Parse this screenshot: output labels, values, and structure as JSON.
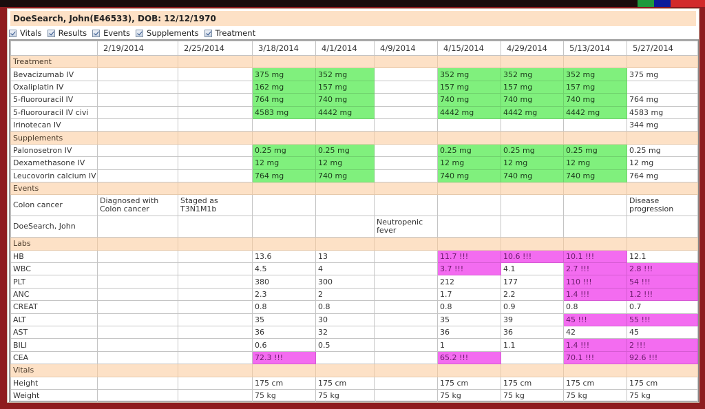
{
  "window": {
    "accent_colors": [
      "#1e9a3c",
      "#0b1c9a",
      "#d22a2a"
    ],
    "frame_color": "#8e1c1f"
  },
  "patient": {
    "header": "DoeSearch, John(E46533), DOB: 12/12/1970"
  },
  "filters": [
    {
      "label": "Vitals",
      "checked": true
    },
    {
      "label": "Results",
      "checked": true
    },
    {
      "label": "Events",
      "checked": true
    },
    {
      "label": "Supplements",
      "checked": true
    },
    {
      "label": "Treatment",
      "checked": true
    }
  ],
  "colors": {
    "section_bg": "#fde1c6",
    "administered_green": "#80f07d",
    "abnormal_magenta": "#f36cf0"
  },
  "grid": {
    "dates": [
      "2/19/2014",
      "2/25/2014",
      "3/18/2014",
      "4/1/2014",
      "4/9/2014",
      "4/15/2014",
      "4/29/2014",
      "5/13/2014",
      "5/27/2014"
    ],
    "sections": {
      "treatment": {
        "label": "Treatment",
        "rows": [
          {
            "name": "Bevacizumab IV",
            "values": [
              "",
              "",
              "375 mg",
              "352 mg",
              "",
              "352 mg",
              "352 mg",
              "352 mg",
              "375 mg"
            ]
          },
          {
            "name": "Oxaliplatin IV",
            "values": [
              "",
              "",
              "162 mg",
              "157 mg",
              "",
              "157 mg",
              "157 mg",
              "157 mg",
              ""
            ]
          },
          {
            "name": "5-fluorouracil IV",
            "values": [
              "",
              "",
              "764 mg",
              "740 mg",
              "",
              "740 mg",
              "740 mg",
              "740 mg",
              "764 mg"
            ]
          },
          {
            "name": "5-fluorouracil IV civi",
            "values": [
              "",
              "",
              "4583 mg",
              "4442 mg",
              "",
              "4442 mg",
              "4442 mg",
              "4442 mg",
              "4583 mg"
            ]
          },
          {
            "name": "Irinotecan IV",
            "values": [
              "",
              "",
              "",
              "",
              "",
              "",
              "",
              "",
              "344 mg"
            ]
          }
        ]
      },
      "supplements": {
        "label": "Supplements",
        "rows": [
          {
            "name": "Palonosetron IV",
            "values": [
              "",
              "",
              "0.25 mg",
              "0.25 mg",
              "",
              "0.25 mg",
              "0.25 mg",
              "0.25 mg",
              "0.25 mg"
            ]
          },
          {
            "name": "Dexamethasone IV",
            "values": [
              "",
              "",
              "12 mg",
              "12 mg",
              "",
              "12 mg",
              "12 mg",
              "12 mg",
              "12 mg"
            ]
          },
          {
            "name": "Leucovorin calcium IV",
            "values": [
              "",
              "",
              "764 mg",
              "740 mg",
              "",
              "740 mg",
              "740 mg",
              "740 mg",
              "764 mg"
            ]
          }
        ]
      },
      "events": {
        "label": "Events",
        "rows": [
          {
            "name": "Colon cancer",
            "values": [
              "Diagnosed with Colon cancer",
              "Staged as T3N1M1b",
              "",
              "",
              "",
              "",
              "",
              "",
              "Disease progression"
            ]
          },
          {
            "name": "DoeSearch, John",
            "values": [
              "",
              "",
              "",
              "",
              "Neutropenic fever",
              "",
              "",
              "",
              ""
            ]
          }
        ]
      },
      "labs": {
        "label": "Labs",
        "rows": [
          {
            "name": "HB",
            "values": [
              "",
              "",
              "13.6",
              "13",
              "",
              "11.7 !!!",
              "10.6 !!!",
              "10.1 !!!",
              "12.1"
            ]
          },
          {
            "name": "WBC",
            "values": [
              "",
              "",
              "4.5",
              "4",
              "",
              "3.7 !!!",
              "4.1",
              "2.7 !!!",
              "2.8 !!!"
            ]
          },
          {
            "name": "PLT",
            "values": [
              "",
              "",
              "380",
              "300",
              "",
              "212",
              "177",
              "110 !!!",
              "54 !!!"
            ]
          },
          {
            "name": "ANC",
            "values": [
              "",
              "",
              "2.3",
              "2",
              "",
              "1.7",
              "2.2",
              "1.4 !!!",
              "1.2 !!!"
            ]
          },
          {
            "name": "CREAT",
            "values": [
              "",
              "",
              "0.8",
              "0.8",
              "",
              "0.8",
              "0.9",
              "0.8",
              "0.7"
            ]
          },
          {
            "name": "ALT",
            "values": [
              "",
              "",
              "35",
              "30",
              "",
              "35",
              "39",
              "45 !!!",
              "55 !!!"
            ]
          },
          {
            "name": "AST",
            "values": [
              "",
              "",
              "36",
              "32",
              "",
              "36",
              "36",
              "42",
              "45"
            ]
          },
          {
            "name": "BILI",
            "values": [
              "",
              "",
              "0.6",
              "0.5",
              "",
              "1",
              "1.1",
              "1.4 !!!",
              "2 !!!"
            ]
          },
          {
            "name": "CEA",
            "values": [
              "",
              "",
              "72.3 !!!",
              "",
              "",
              "65.2 !!!",
              "",
              "70.1 !!!",
              "92.6 !!!"
            ]
          }
        ]
      },
      "vitals": {
        "label": "Vitals",
        "rows": [
          {
            "name": "Height",
            "values": [
              "",
              "",
              "175 cm",
              "175 cm",
              "",
              "175 cm",
              "175 cm",
              "175 cm",
              "175 cm"
            ]
          },
          {
            "name": "Weight",
            "values": [
              "",
              "",
              "75 kg",
              "75 kg",
              "",
              "75 kg",
              "75 kg",
              "75 kg",
              "75 kg"
            ]
          }
        ]
      }
    }
  }
}
